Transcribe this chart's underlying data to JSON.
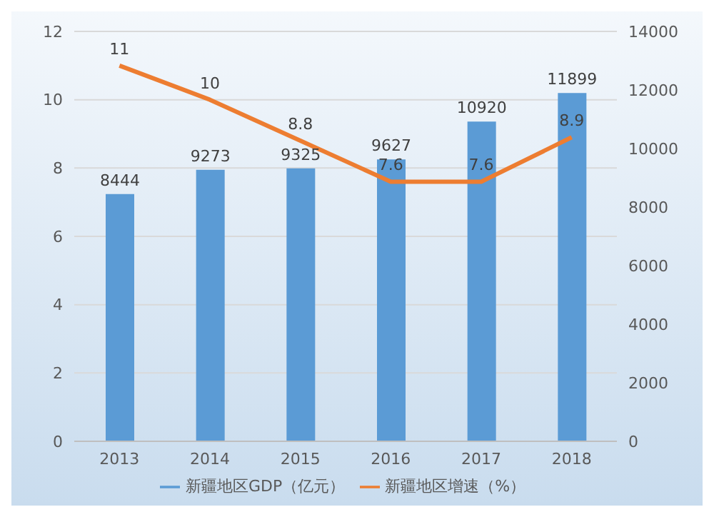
{
  "chart_data": {
    "type": "bar",
    "categories": [
      "2013",
      "2014",
      "2015",
      "2016",
      "2017",
      "2018"
    ],
    "series": [
      {
        "name": "新疆地区GDP（亿元）",
        "axis": "y2",
        "color": "#5b9bd5",
        "values": [
          8444,
          9273,
          9325,
          9627,
          10920,
          11899
        ]
      },
      {
        "name": "新疆地区增速（%）",
        "type": "line",
        "axis": "y",
        "color": "#ed7d31",
        "values": [
          11,
          10,
          8.8,
          7.6,
          7.6,
          8.9
        ]
      }
    ],
    "ylim": [
      0,
      12
    ],
    "yticks": [
      0,
      2,
      4,
      6,
      8,
      10,
      12
    ],
    "y2lim": [
      0,
      14000
    ],
    "y2ticks": [
      0,
      2000,
      4000,
      6000,
      8000,
      10000,
      12000,
      14000
    ],
    "grid": "y",
    "legend": "bottom",
    "data_labels": true,
    "marker": "none",
    "line_style": "solid"
  }
}
